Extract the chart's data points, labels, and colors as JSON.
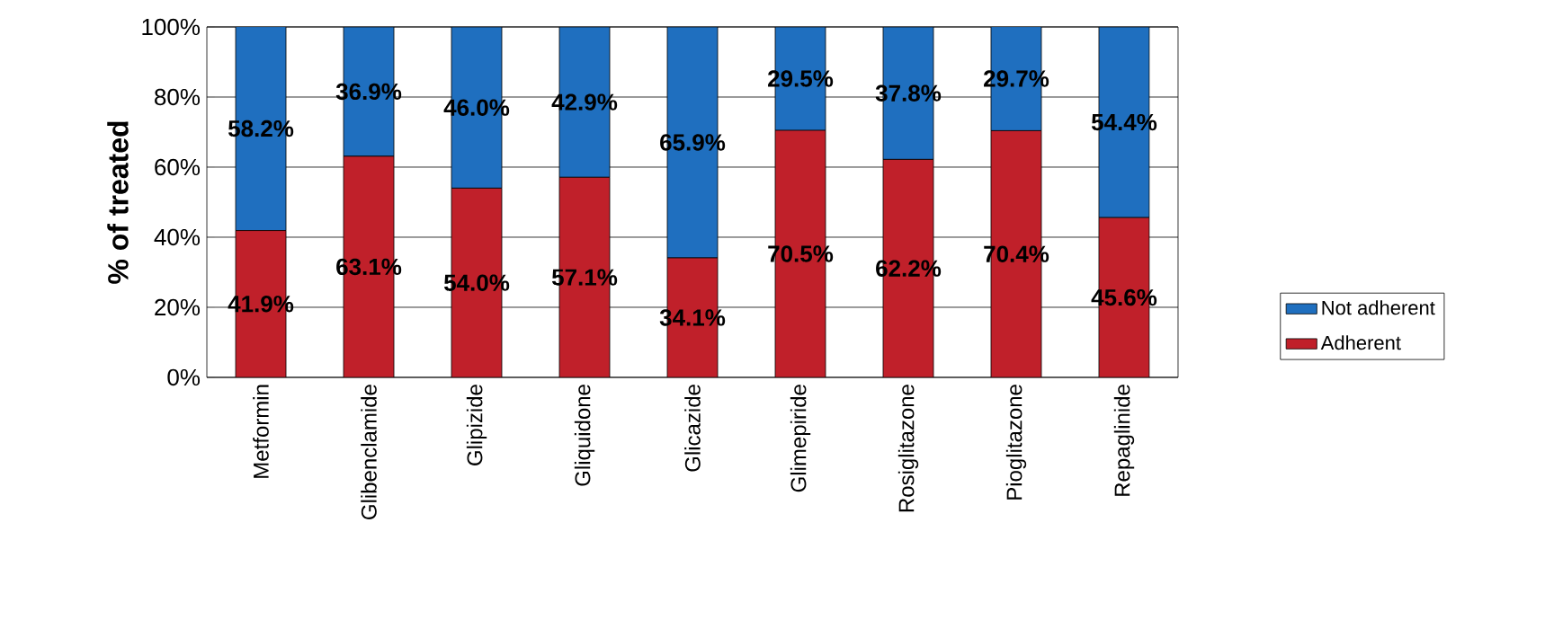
{
  "chart_data": {
    "type": "bar",
    "stacked": true,
    "ylabel": "% of treated",
    "categories": [
      "Metformin",
      "Glibenclamide",
      "Glipizide",
      "Gliquidone",
      "Glicazide",
      "Glimepiride",
      "Rosiglitazone",
      "Pioglitazone",
      "Repaglinide"
    ],
    "series": [
      {
        "name": "Adherent",
        "color": "#c0202a",
        "values": [
          41.9,
          63.1,
          54.0,
          57.1,
          34.1,
          70.5,
          62.2,
          70.4,
          45.6
        ],
        "value_labels": [
          "41.9%",
          "63.1%",
          "54.0%",
          "57.1%",
          "34.1%",
          "70.5%",
          "62.2%",
          "70.4%",
          "45.6%"
        ]
      },
      {
        "name": "Not adherent",
        "color": "#1f6fbf",
        "values": [
          58.2,
          36.9,
          46.0,
          42.9,
          65.9,
          29.5,
          37.8,
          29.7,
          54.4
        ],
        "value_labels": [
          "58.2%",
          "36.9%",
          "46.0%",
          "42.9%",
          "65.9%",
          "29.5%",
          "37.8%",
          "29.7%",
          "54.4%"
        ]
      }
    ],
    "ylim": [
      0,
      100
    ],
    "yticks": [
      {
        "value": 0,
        "label": "0%"
      },
      {
        "value": 20,
        "label": "20%"
      },
      {
        "value": 40,
        "label": "40%"
      },
      {
        "value": 60,
        "label": "60%"
      },
      {
        "value": 80,
        "label": "80%"
      },
      {
        "value": 100,
        "label": "100%"
      }
    ],
    "grid": "y",
    "legend": "right"
  }
}
